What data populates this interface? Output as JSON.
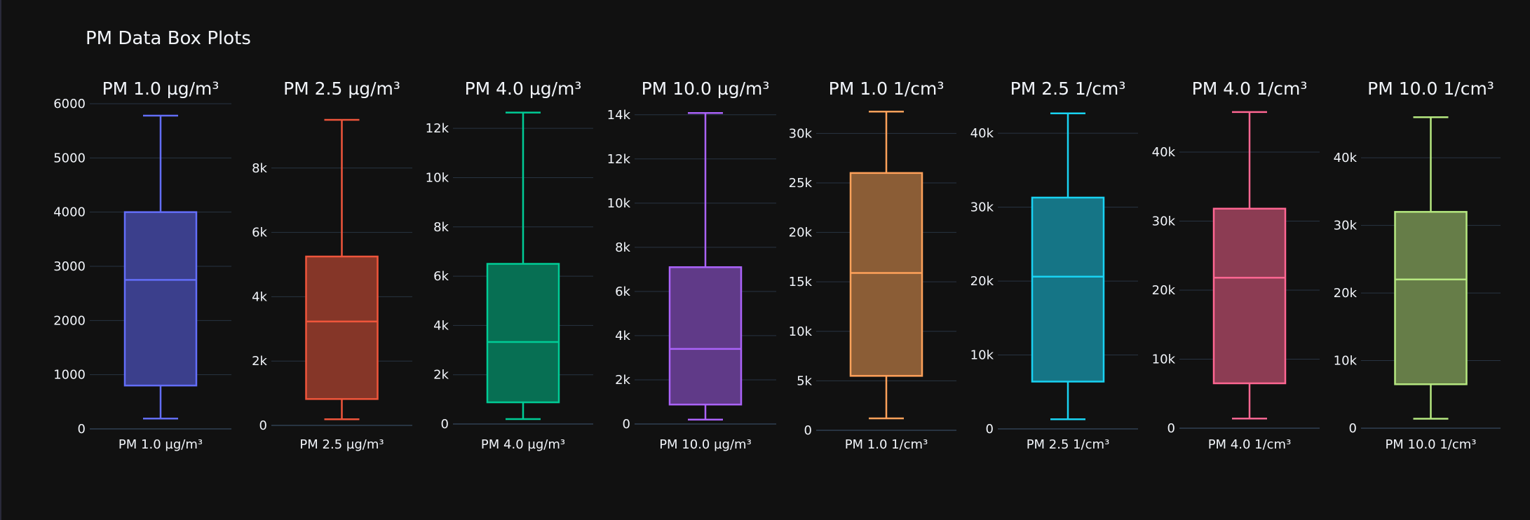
{
  "title": "PM Data Box Plots",
  "theme": {
    "background": "#111111",
    "grid": "#283442",
    "text": "#f2f5fa"
  },
  "chart_data": [
    {
      "type": "box",
      "title": "PM 1.0 µg/m³",
      "category": "PM 1.0 µg/m³",
      "color": "#636efa",
      "fill": "#3b3f8c",
      "min": 190,
      "q1": 800,
      "median": 2750,
      "q3": 4000,
      "max": 5780,
      "ylim": [
        0,
        6000
      ],
      "tick_values": [
        0,
        1000,
        2000,
        3000,
        4000,
        5000,
        6000
      ],
      "tick_labels": [
        "0",
        "1000",
        "2000",
        "3000",
        "4000",
        "5000",
        "6000"
      ]
    },
    {
      "type": "box",
      "title": "PM 2.5 µg/m³",
      "category": "PM 2.5 µg/m³",
      "color": "#ef553b",
      "fill": "#853628",
      "min": 190,
      "q1": 820,
      "median": 3230,
      "q3": 5250,
      "max": 9500,
      "ylim": [
        0,
        10000
      ],
      "tick_values": [
        0,
        2000,
        4000,
        6000,
        8000
      ],
      "tick_labels": [
        "0",
        "2k",
        "4k",
        "6k",
        "8k"
      ]
    },
    {
      "type": "box",
      "title": "PM 4.0 µg/m³",
      "category": "PM 4.0 µg/m³",
      "color": "#00cc96",
      "fill": "#076f53",
      "min": 200,
      "q1": 880,
      "median": 3330,
      "q3": 6500,
      "max": 12640,
      "ylim": [
        0,
        13000
      ],
      "tick_values": [
        0,
        2000,
        4000,
        6000,
        8000,
        10000,
        12000
      ],
      "tick_labels": [
        "0",
        "2k",
        "4k",
        "6k",
        "8k",
        "10k",
        "12k"
      ]
    },
    {
      "type": "box",
      "title": "PM 10.0 µg/m³",
      "category": "PM 10.0 µg/m³",
      "color": "#ab63fa",
      "fill": "#603a88",
      "min": 200,
      "q1": 880,
      "median": 3400,
      "q3": 7100,
      "max": 14080,
      "ylim": [
        0,
        14500
      ],
      "tick_values": [
        0,
        2000,
        4000,
        6000,
        8000,
        10000,
        12000,
        14000
      ],
      "tick_labels": [
        "0",
        "2k",
        "4k",
        "6k",
        "8k",
        "10k",
        "12k",
        "14k"
      ]
    },
    {
      "type": "box",
      "title": "PM 1.0 1/cm³",
      "category": "PM 1.0 1/cm³",
      "color": "#ffa15a",
      "fill": "#8b5d36",
      "min": 1200,
      "q1": 5500,
      "median": 15900,
      "q3": 26000,
      "max": 32200,
      "ylim": [
        0,
        33000
      ],
      "tick_values": [
        0,
        5000,
        10000,
        15000,
        20000,
        25000,
        30000
      ],
      "tick_labels": [
        "0",
        "5k",
        "10k",
        "15k",
        "20k",
        "25k",
        "30k"
      ]
    },
    {
      "type": "box",
      "title": "PM 2.5 1/cm³",
      "category": "PM 2.5 1/cm³",
      "color": "#19d3f3",
      "fill": "#157586",
      "min": 1300,
      "q1": 6400,
      "median": 20600,
      "q3": 31300,
      "max": 42700,
      "ylim": [
        0,
        44000
      ],
      "tick_values": [
        0,
        10000,
        20000,
        30000,
        40000
      ],
      "tick_labels": [
        "0",
        "10k",
        "20k",
        "30k",
        "40k"
      ]
    },
    {
      "type": "box",
      "title": "PM 4.0 1/cm³",
      "category": "PM 4.0 1/cm³",
      "color": "#ff6692",
      "fill": "#8c3c53",
      "min": 1400,
      "q1": 6500,
      "median": 21800,
      "q3": 31800,
      "max": 45800,
      "ylim": [
        0,
        47000
      ],
      "tick_values": [
        0,
        10000,
        20000,
        30000,
        40000
      ],
      "tick_labels": [
        "0",
        "10k",
        "20k",
        "30k",
        "40k"
      ]
    },
    {
      "type": "box",
      "title": "PM 10.0 1/cm³",
      "category": "PM 10.0 1/cm³",
      "color": "#b6e880",
      "fill": "#667d48",
      "min": 1400,
      "q1": 6500,
      "median": 22000,
      "q3": 32000,
      "max": 46000,
      "ylim": [
        0,
        48000
      ],
      "tick_values": [
        0,
        10000,
        20000,
        30000,
        40000
      ],
      "tick_labels": [
        "0",
        "10k",
        "20k",
        "30k",
        "40k"
      ]
    }
  ]
}
